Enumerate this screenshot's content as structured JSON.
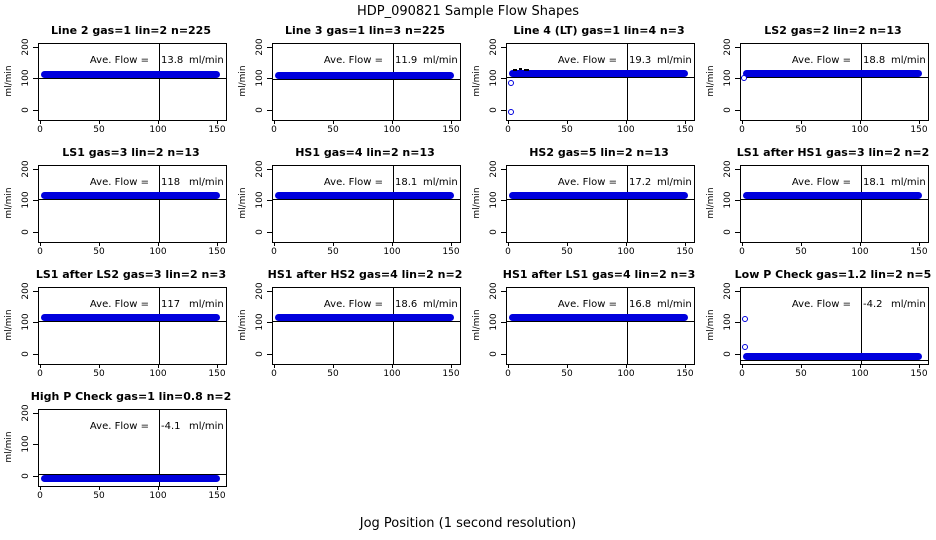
{
  "page": {
    "title": "HDP_090821  Sample Flow Shapes",
    "xlabel": "Jog Position (1 second resolution)"
  },
  "axes": {
    "x_tick_labels": [
      "0",
      "50",
      "100",
      "150"
    ],
    "y_tick_labels": [
      "0",
      "100",
      "200"
    ],
    "y_unit": "ml/min",
    "x_range": [
      0,
      155
    ],
    "y_range": [
      -30,
      212
    ],
    "ref_line_x": 100
  },
  "annotation": {
    "label": "Ave. Flow =",
    "unit": "ml/min"
  },
  "colors": {
    "band_blue": "#0000dd",
    "axis_black": "#000000",
    "background": "#ffffff"
  },
  "chart_data": [
    {
      "type": "scatter",
      "title": "Line 2 gas=1 lin=2 n=225",
      "ave_flow_display": "13.8",
      "band": {
        "x_start": 0,
        "x_end": 152,
        "y": 114
      },
      "outliers": [],
      "start_marks": false,
      "hline": "bottom"
    },
    {
      "type": "scatter",
      "title": "Line 3 gas=1 lin=3 n=225",
      "ave_flow_display": "11.9",
      "band": {
        "x_start": 0,
        "x_end": 152,
        "y": 113
      },
      "outliers": [],
      "start_marks": false,
      "hline": "bottom"
    },
    {
      "type": "scatter",
      "title": "Line 4 (LT) gas=1 lin=4 n=3",
      "ave_flow_display": "19.3",
      "band": {
        "x_start": 0,
        "x_end": 152,
        "y": 119
      },
      "outliers": [
        [
          2,
          88
        ],
        [
          2,
          -2
        ]
      ],
      "start_marks": true,
      "hline": "bottom"
    },
    {
      "type": "scatter",
      "title": "LS2 gas=2 lin=2 n=13",
      "ave_flow_display": "18.8",
      "band": {
        "x_start": 0,
        "x_end": 152,
        "y": 118
      },
      "outliers": [
        [
          1,
          105
        ]
      ],
      "start_marks": false,
      "hline": "bottom"
    },
    {
      "type": "scatter",
      "title": "LS1 gas=3 lin=2 n=13",
      "ave_flow_display": "118",
      "band": {
        "x_start": 0,
        "x_end": 152,
        "y": 118
      },
      "outliers": [],
      "start_marks": false,
      "hline": "bottom"
    },
    {
      "type": "scatter",
      "title": "HS1 gas=4 lin=2 n=13",
      "ave_flow_display": "18.1",
      "band": {
        "x_start": 0,
        "x_end": 152,
        "y": 118
      },
      "outliers": [],
      "start_marks": false,
      "hline": "bottom"
    },
    {
      "type": "scatter",
      "title": "HS2 gas=5 lin=2 n=13",
      "ave_flow_display": "17.2",
      "band": {
        "x_start": 0,
        "x_end": 152,
        "y": 117
      },
      "outliers": [],
      "start_marks": false,
      "hline": "bottom"
    },
    {
      "type": "scatter",
      "title": "LS1 after HS1 gas=3 lin=2 n=2",
      "ave_flow_display": "18.1",
      "band": {
        "x_start": 0,
        "x_end": 152,
        "y": 118
      },
      "outliers": [],
      "start_marks": false,
      "hline": "bottom"
    },
    {
      "type": "scatter",
      "title": "LS1 after LS2 gas=3 lin=2 n=3",
      "ave_flow_display": "117",
      "band": {
        "x_start": 0,
        "x_end": 152,
        "y": 117
      },
      "outliers": [],
      "start_marks": false,
      "hline": "bottom"
    },
    {
      "type": "scatter",
      "title": "HS1 after HS2 gas=4 lin=2 n=2",
      "ave_flow_display": "18.6",
      "band": {
        "x_start": 0,
        "x_end": 152,
        "y": 119
      },
      "outliers": [],
      "start_marks": false,
      "hline": "bottom"
    },
    {
      "type": "scatter",
      "title": "HS1 after LS1 gas=4 lin=2 n=3",
      "ave_flow_display": "16.8",
      "band": {
        "x_start": 0,
        "x_end": 152,
        "y": 117
      },
      "outliers": [],
      "start_marks": false,
      "hline": "bottom"
    },
    {
      "type": "scatter",
      "title": "Low P Check gas=1.2 lin=2 n=5",
      "ave_flow_display": "-4.2",
      "band": {
        "x_start": 0,
        "x_end": 152,
        "y": -5
      },
      "outliers": [
        [
          2,
          115
        ],
        [
          2,
          25
        ]
      ],
      "start_marks": false,
      "hline": "bottom"
    },
    {
      "type": "scatter",
      "title": "High P Check gas=1 lin=0.8 n=2",
      "ave_flow_display": "-4.1",
      "band": {
        "x_start": 0,
        "x_end": 152,
        "y": -5
      },
      "outliers": [],
      "start_marks": false,
      "hline": "top"
    }
  ]
}
